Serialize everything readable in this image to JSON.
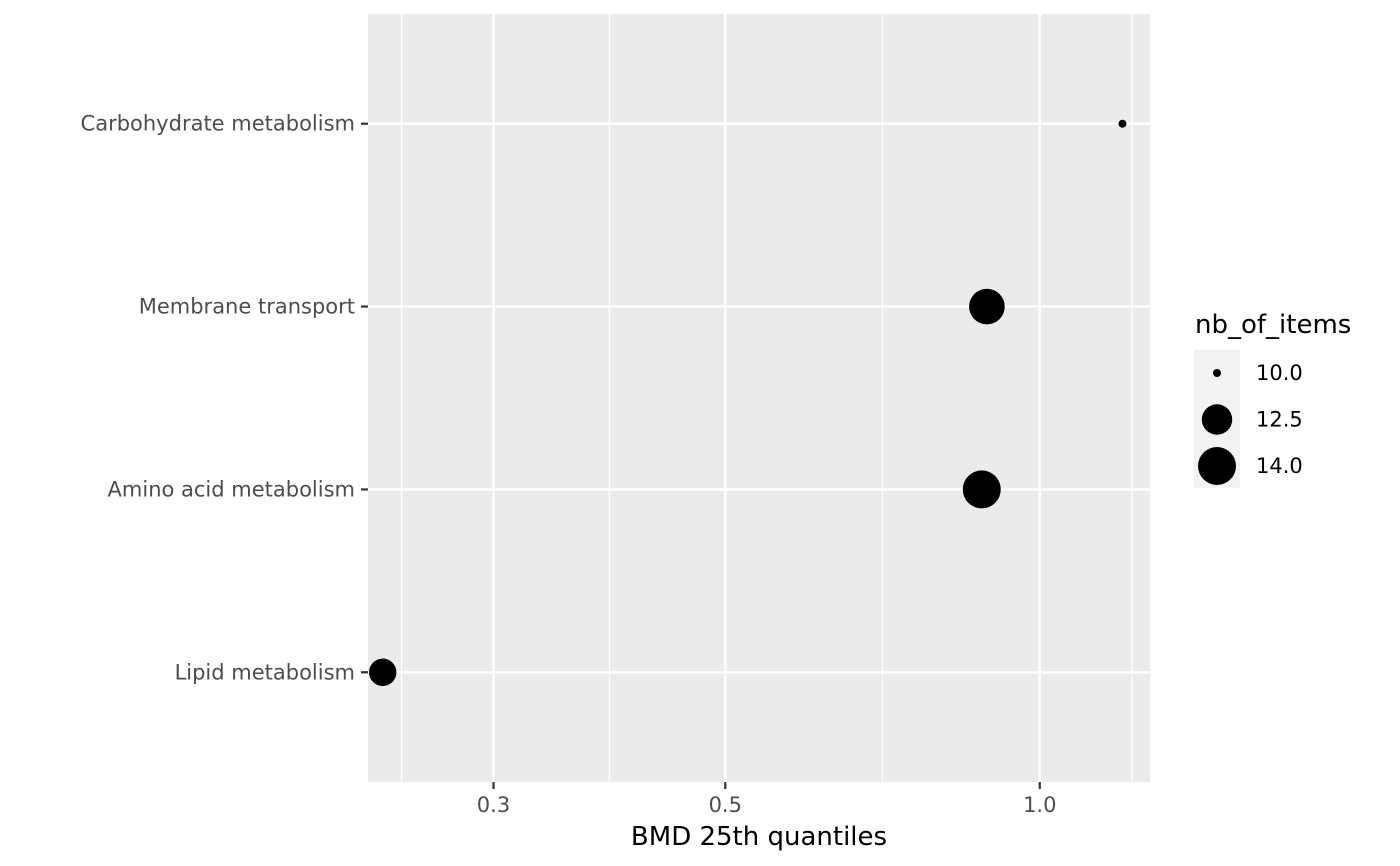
{
  "chart_data": {
    "type": "scatter",
    "xlabel": "BMD 25th quantiles",
    "ylabel": "",
    "xscale": "log10",
    "xlim": [
      0.2275,
      1.275
    ],
    "xticks": [
      0.3,
      0.5,
      1.0
    ],
    "xtick_labels": [
      "0.3",
      "0.5",
      "1.0"
    ],
    "categories": [
      "Lipid metabolism",
      "Amino acid metabolism",
      "Membrane transport",
      "Carbohydrate metabolism"
    ],
    "points": [
      {
        "category": "Carbohydrate metabolism",
        "x": 1.2,
        "size": 10.0
      },
      {
        "category": "Membrane transport",
        "x": 0.89,
        "size": 13.5
      },
      {
        "category": "Amino acid metabolism",
        "x": 0.88,
        "size": 14.0
      },
      {
        "category": "Lipid metabolism",
        "x": 0.235,
        "size": 12.0
      }
    ],
    "size_range": [
      10.0,
      14.0
    ],
    "grid": true,
    "background": "#ebebeb",
    "grid_color": "#ffffff",
    "point_color": "#000000",
    "legend": {
      "title": "nb_of_items",
      "position": "right",
      "entries": [
        {
          "label": "10.0",
          "value": 10.0
        },
        {
          "label": "12.5",
          "value": 12.5
        },
        {
          "label": "14.0",
          "value": 14.0
        }
      ]
    }
  }
}
